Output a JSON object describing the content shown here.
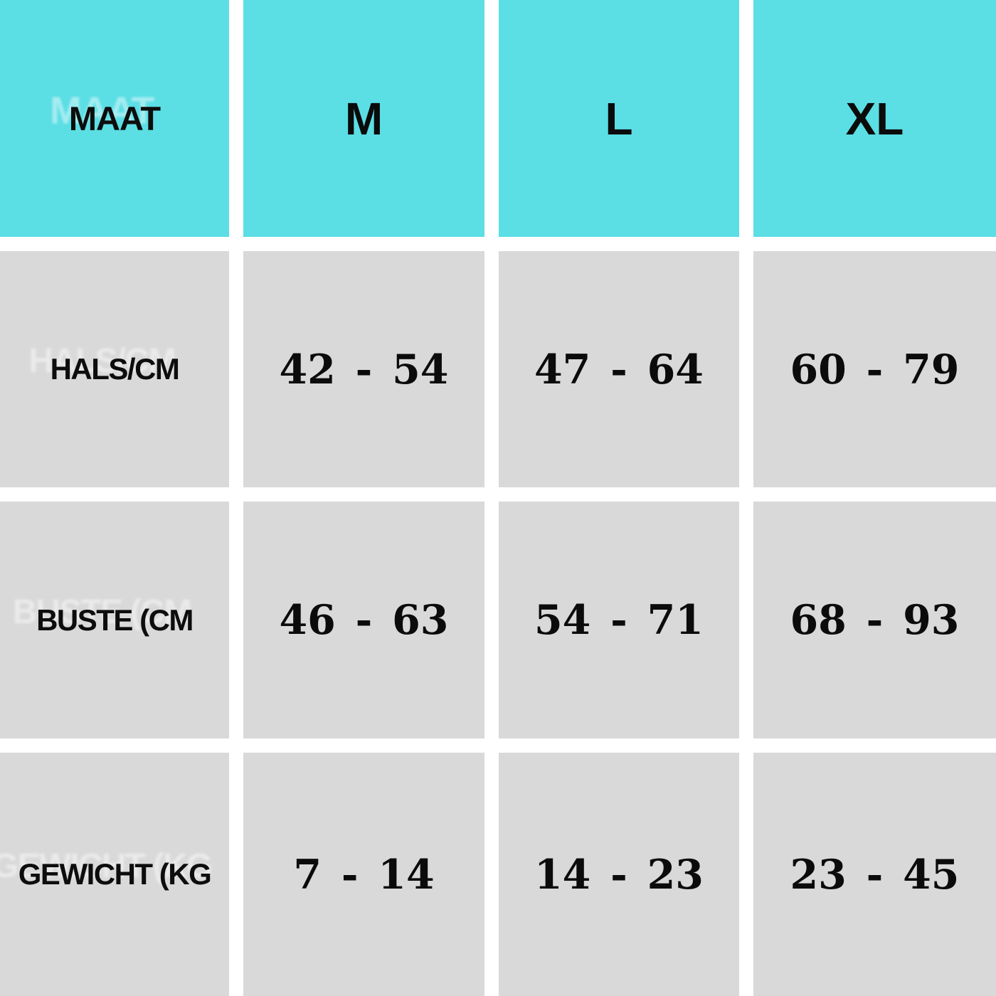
{
  "colors": {
    "header_bg": "#5bdee4",
    "row_bg": "#d9d9d9",
    "gap": "#ffffff",
    "text": "#0b0b0b"
  },
  "table": {
    "header": {
      "label": "MAAT",
      "sizes": [
        "M",
        "L",
        "XL"
      ]
    },
    "rows": [
      {
        "label": "HALS/CM",
        "values": [
          "42 - 54",
          "47 - 64",
          "60 - 79"
        ]
      },
      {
        "label": "BUSTE (CM",
        "values": [
          "46 - 63",
          "54 - 71",
          "68 - 93"
        ]
      },
      {
        "label": "GEWICHT (KG",
        "values": [
          "7 - 14",
          "14 - 23",
          "23 - 45"
        ]
      }
    ]
  },
  "chart_data": {
    "type": "table",
    "columns": [
      "MAAT",
      "M",
      "L",
      "XL"
    ],
    "rows": [
      [
        "HALS/CM",
        "42 - 54",
        "47 - 64",
        "60 - 79"
      ],
      [
        "BUSTE (CM",
        "46 - 63",
        "54 - 71",
        "68 - 93"
      ],
      [
        "GEWICHT (KG",
        "7 - 14",
        "14 - 23",
        "23 - 45"
      ]
    ]
  }
}
